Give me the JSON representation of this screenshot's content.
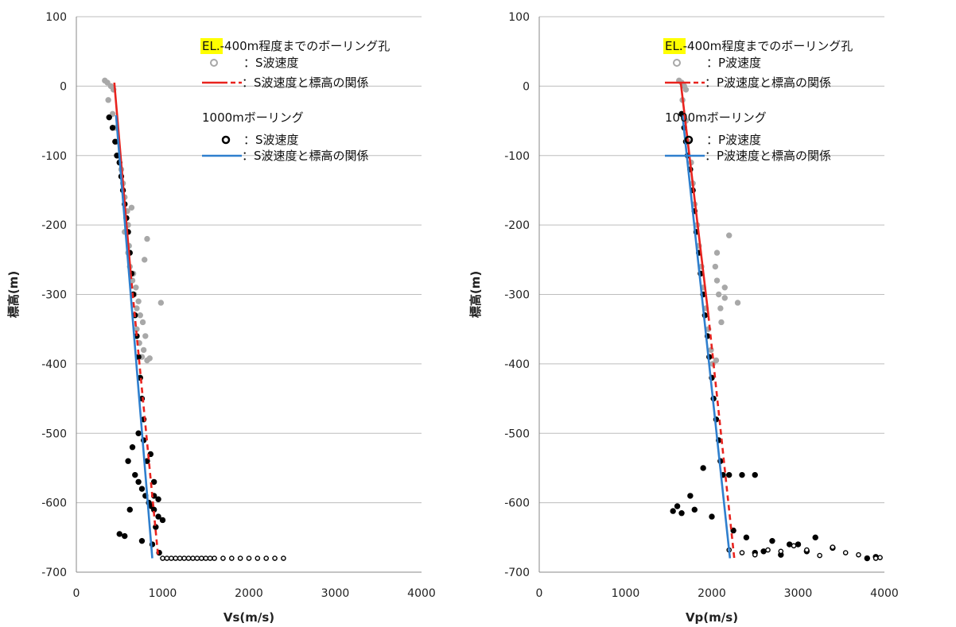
{
  "chart_data": [
    {
      "type": "scatter",
      "xlabel": "Vs(m/s)",
      "ylabel": "標高(m)",
      "xlim": [
        0,
        4000
      ],
      "ylim": [
        -700,
        100
      ],
      "xticks": [
        "0",
        "1000",
        "2000",
        "3000",
        "4000"
      ],
      "yticks": [
        "100",
        "0",
        "-100",
        "-200",
        "-300",
        "-400",
        "-500",
        "-600",
        "-700"
      ],
      "grid": "horizontal",
      "legend": {
        "placement": "top-right",
        "group1_title_highlight": "EL.",
        "group1_title": "-400m程度までのボーリング孔",
        "group1_points_label": "：S波速度",
        "group1_line_label": "：S波速度と標高の関係",
        "group2_title": "1000mボーリング",
        "group2_points_label": "：S波速度",
        "group2_line_label": "：S波速度と標高の関係"
      },
      "colors": {
        "shallow_points": "#a8a8a8",
        "deep_points": "#000000",
        "shallow_fit": "#e8231e",
        "deep_fit": "#2f7fce"
      },
      "series": [
        {
          "kind": "points",
          "color_key": "shallow_points",
          "hollow": false,
          "x": [
            330,
            360,
            400,
            430,
            370,
            420,
            450,
            470,
            480,
            520,
            540,
            560,
            590,
            600,
            610,
            580,
            640,
            560,
            600,
            620,
            650,
            670,
            700,
            660,
            690,
            720,
            740,
            700,
            730,
            760,
            780,
            800,
            770,
            820,
            850,
            790,
            820,
            980
          ],
          "y": [
            8,
            5,
            0,
            -5,
            -20,
            -40,
            -60,
            -80,
            -100,
            -120,
            -140,
            -160,
            -180,
            -200,
            -230,
            -190,
            -175,
            -210,
            -240,
            -260,
            -280,
            -300,
            -320,
            -270,
            -290,
            -310,
            -330,
            -350,
            -370,
            -390,
            -380,
            -360,
            -340,
            -395,
            -392,
            -250,
            -220,
            -312
          ]
        },
        {
          "kind": "points",
          "color_key": "deep_points",
          "hollow": false,
          "x": [
            380,
            420,
            450,
            470,
            500,
            520,
            540,
            560,
            580,
            600,
            620,
            640,
            660,
            680,
            700,
            720,
            740,
            760,
            780,
            720,
            650,
            600,
            680,
            720,
            760,
            800,
            840,
            870,
            900,
            950,
            900,
            820,
            780,
            860,
            900,
            950,
            1000,
            920,
            620,
            500,
            560,
            760,
            880,
            960
          ],
          "y": [
            -45,
            -60,
            -80,
            -100,
            -110,
            -130,
            -150,
            -170,
            -190,
            -210,
            -240,
            -270,
            -300,
            -330,
            -360,
            -390,
            -420,
            -450,
            -480,
            -500,
            -520,
            -540,
            -560,
            -570,
            -580,
            -590,
            -600,
            -605,
            -610,
            -620,
            -590,
            -540,
            -510,
            -530,
            -570,
            -595,
            -625,
            -635,
            -610,
            -645,
            -648,
            -655,
            -660,
            -672
          ]
        },
        {
          "kind": "points",
          "color_key": "deep_points",
          "hollow": true,
          "x": [
            1000,
            1050,
            1100,
            1150,
            1200,
            1250,
            1300,
            1350,
            1400,
            1450,
            1500,
            1550,
            1600,
            1700,
            1800,
            1900,
            2000,
            2100,
            2200,
            2300,
            2400
          ],
          "y": [
            -680,
            -680,
            -680,
            -680,
            -680,
            -680,
            -680,
            -680,
            -680,
            -680,
            -680,
            -680,
            -680,
            -680,
            -680,
            -680,
            -680,
            -680,
            -680,
            -680,
            -680
          ]
        },
        {
          "kind": "line",
          "color_key": "shallow_fit",
          "style": "solid",
          "x": [
            440,
            630
          ],
          "y": [
            5,
            -270
          ]
        },
        {
          "kind": "line",
          "color_key": "shallow_fit",
          "style": "dashed",
          "x": [
            630,
            950
          ],
          "y": [
            -270,
            -680
          ]
        },
        {
          "kind": "line",
          "color_key": "deep_fit",
          "style": "solid",
          "x": [
            460,
            880
          ],
          "y": [
            -42,
            -680
          ]
        }
      ]
    },
    {
      "type": "scatter",
      "xlabel": "Vp(m/s)",
      "ylabel": "標高(m)",
      "xlim": [
        0,
        4000
      ],
      "ylim": [
        -700,
        100
      ],
      "xticks": [
        "0",
        "1000",
        "2000",
        "3000",
        "4000"
      ],
      "yticks": [
        "100",
        "0",
        "-100",
        "-200",
        "-300",
        "-400",
        "-500",
        "-600",
        "-700"
      ],
      "grid": "horizontal",
      "legend": {
        "placement": "top-right",
        "group1_title_highlight": "EL.",
        "group1_title": "-400m程度までのボーリング孔",
        "group1_points_label": "：P波速度",
        "group1_line_label": "：P波速度と標高の関係",
        "group2_title": "1000mボーリング",
        "group2_points_label": "：P波速度",
        "group2_line_label": "：P波速度と標高の関係"
      },
      "colors": {
        "shallow_points": "#a8a8a8",
        "deep_points": "#000000",
        "shallow_fit": "#e8231e",
        "deep_fit": "#2f7fce"
      },
      "series": [
        {
          "kind": "points",
          "color_key": "shallow_points",
          "hollow": false,
          "x": [
            1620,
            1650,
            1680,
            1700,
            1660,
            1700,
            1730,
            1760,
            1780,
            1800,
            1830,
            1850,
            1880,
            1900,
            1930,
            1960,
            1990,
            2010,
            2040,
            2060,
            2080,
            2100,
            2110,
            2200,
            2150,
            2060,
            2300,
            2150,
            2050
          ],
          "y": [
            8,
            5,
            0,
            -5,
            -20,
            -50,
            -80,
            -110,
            -140,
            -170,
            -200,
            -230,
            -260,
            -290,
            -320,
            -350,
            -380,
            -400,
            -260,
            -280,
            -300,
            -320,
            -340,
            -215,
            -290,
            -240,
            -312,
            -305,
            -395
          ]
        },
        {
          "kind": "points",
          "color_key": "deep_points",
          "hollow": false,
          "x": [
            1650,
            1680,
            1700,
            1720,
            1750,
            1780,
            1800,
            1820,
            1850,
            1870,
            1900,
            1920,
            1950,
            1970,
            2000,
            2020,
            2050,
            2080,
            2100,
            2130,
            1900,
            2200,
            2350,
            2500,
            1750,
            1600,
            1550,
            1650,
            1800,
            2000,
            2250,
            2400,
            2700,
            3000,
            3200,
            3400,
            2600,
            2900,
            3100,
            2800,
            3800,
            3900,
            2500
          ],
          "y": [
            -40,
            -60,
            -80,
            -100,
            -120,
            -150,
            -180,
            -210,
            -240,
            -270,
            -300,
            -330,
            -360,
            -390,
            -420,
            -450,
            -480,
            -510,
            -540,
            -560,
            -550,
            -560,
            -560,
            -560,
            -590,
            -605,
            -612,
            -615,
            -610,
            -620,
            -640,
            -650,
            -655,
            -660,
            -650,
            -665,
            -670,
            -660,
            -670,
            -675,
            -680,
            -678,
            -672
          ]
        },
        {
          "kind": "points",
          "color_key": "deep_points",
          "hollow": true,
          "x": [
            2200,
            2350,
            2500,
            2650,
            2800,
            2950,
            3100,
            3250,
            3400,
            3550,
            3700,
            3900,
            3950
          ],
          "y": [
            -668,
            -672,
            -675,
            -668,
            -670,
            -662,
            -668,
            -676,
            -664,
            -672,
            -675,
            -680,
            -679
          ]
        },
        {
          "kind": "line",
          "color_key": "shallow_fit",
          "style": "solid",
          "x": [
            1640,
            1960
          ],
          "y": [
            5,
            -330
          ]
        },
        {
          "kind": "line",
          "color_key": "shallow_fit",
          "style": "dashed",
          "x": [
            1960,
            2260
          ],
          "y": [
            -330,
            -680
          ]
        },
        {
          "kind": "line",
          "color_key": "deep_fit",
          "style": "solid",
          "x": [
            1660,
            2210
          ],
          "y": [
            -42,
            -680
          ]
        }
      ]
    }
  ]
}
